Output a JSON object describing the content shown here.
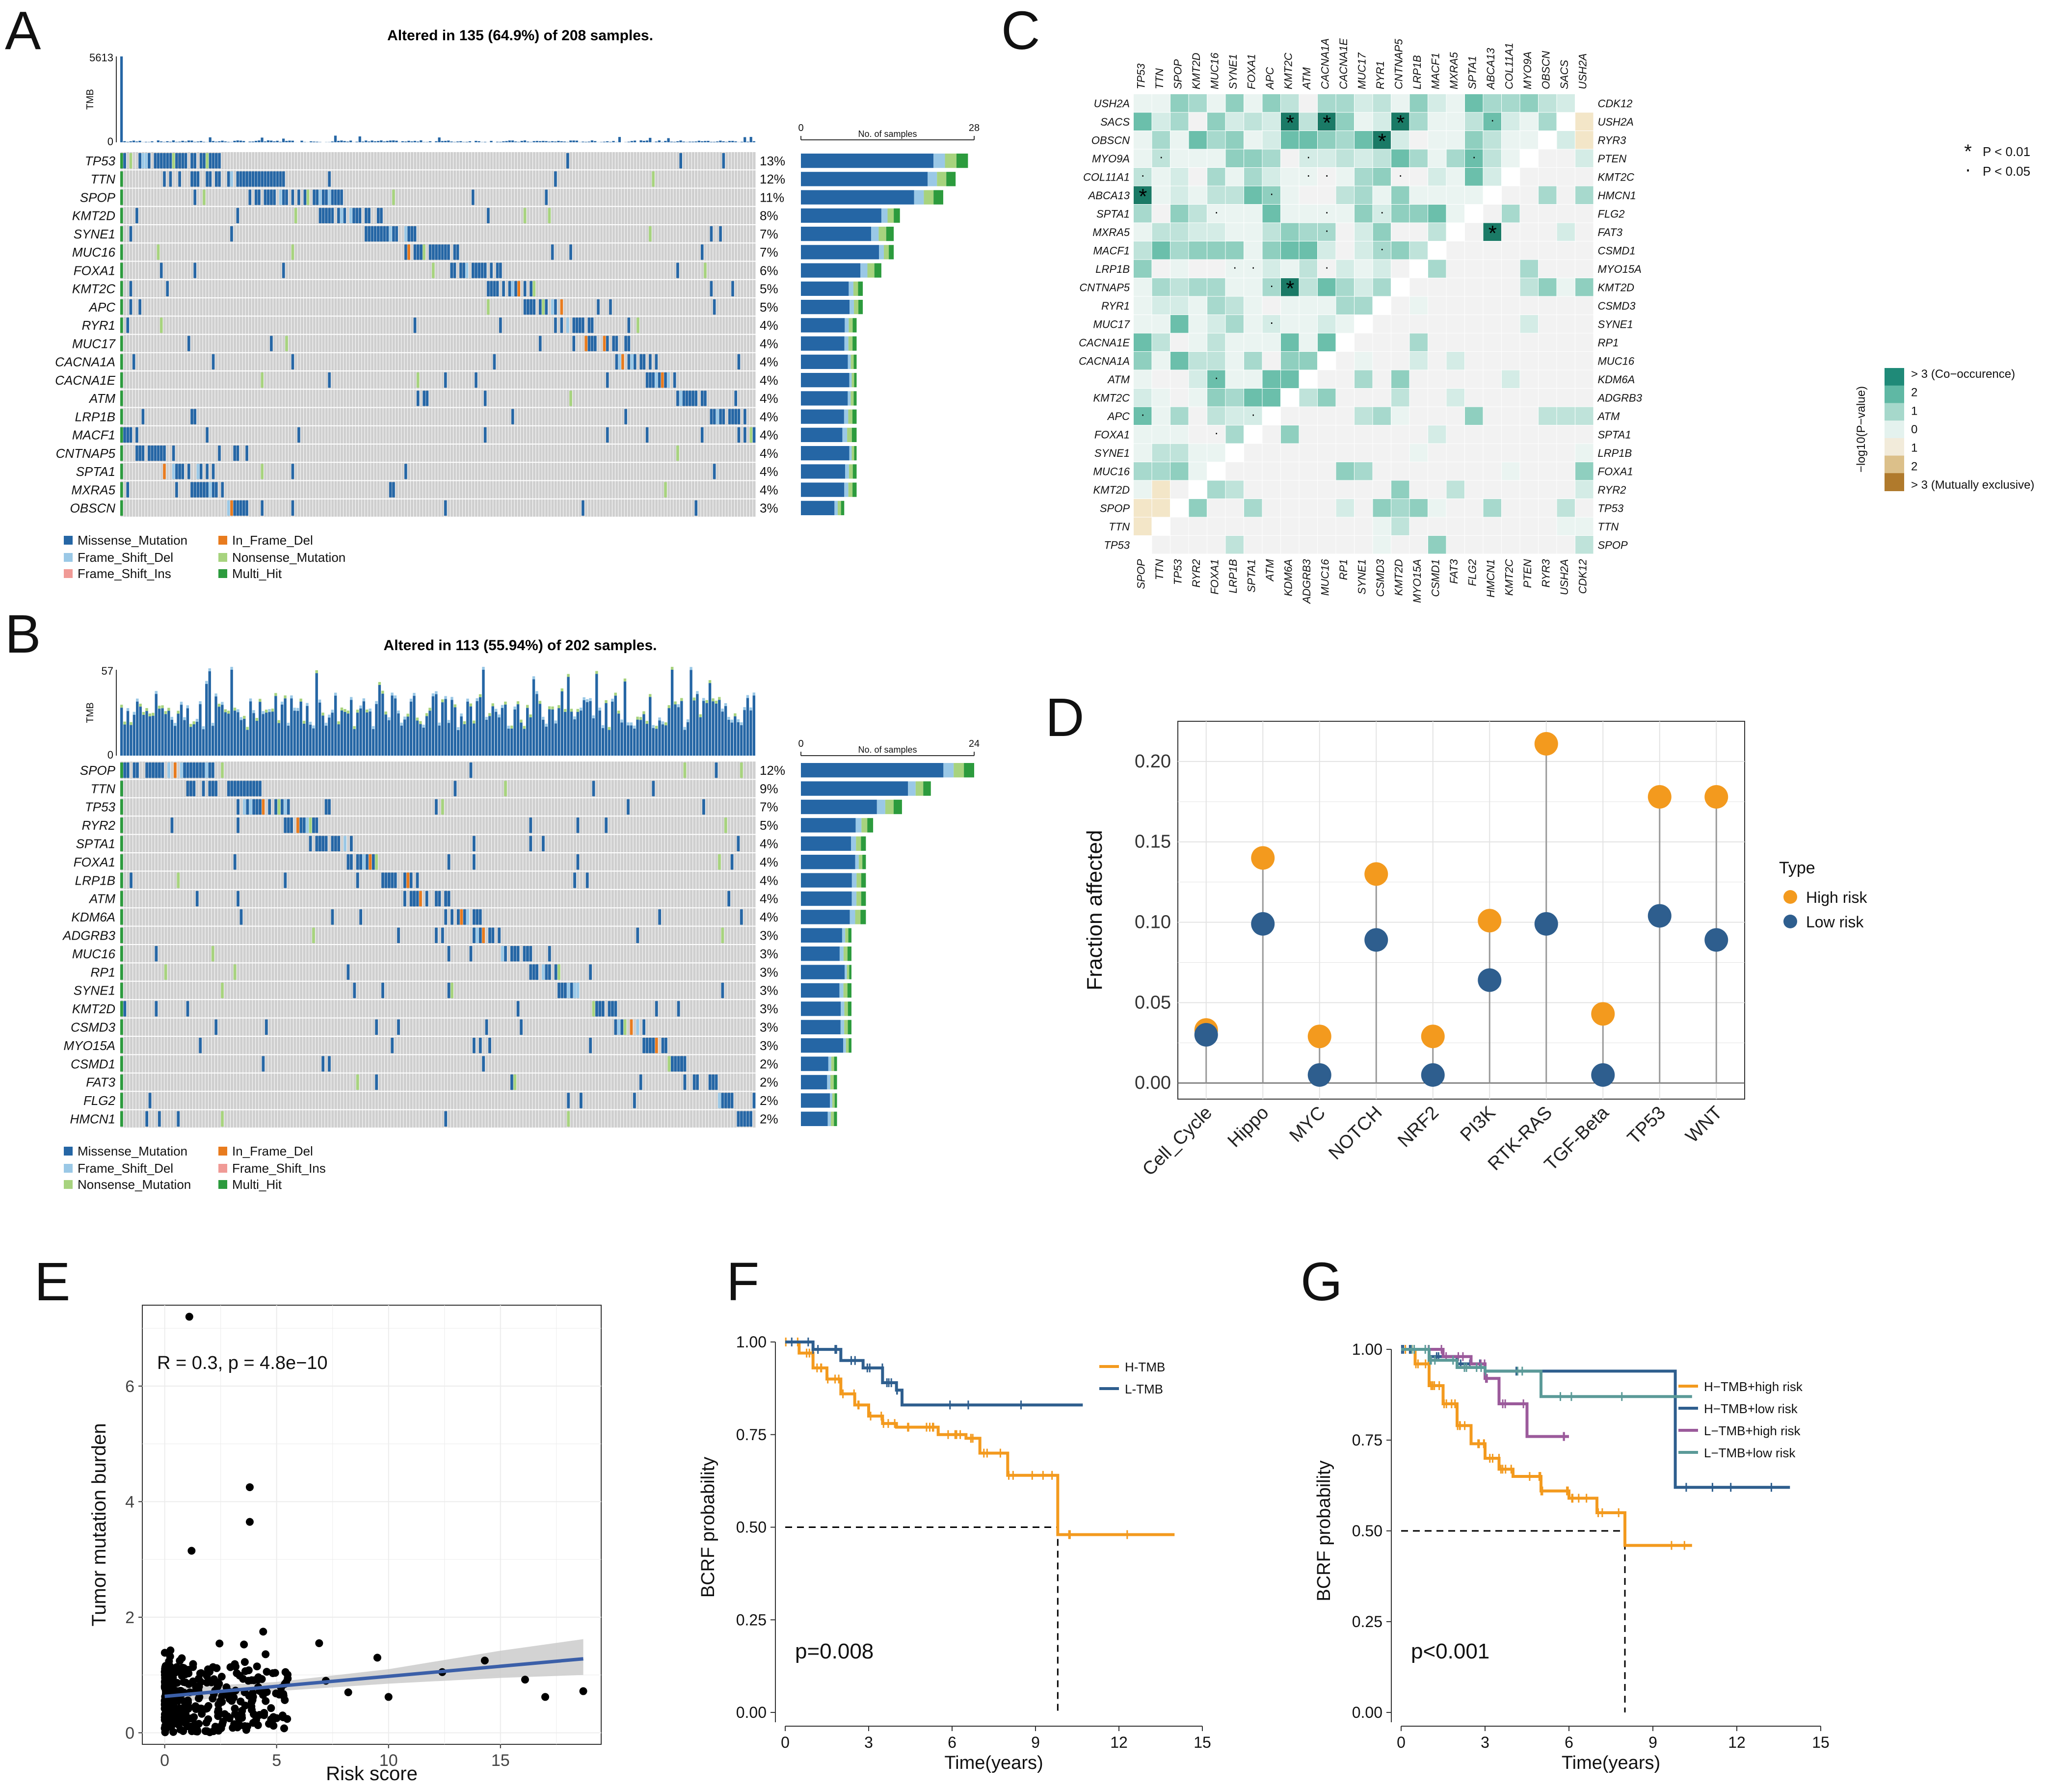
{
  "colors": {
    "missense": "#2566a5",
    "frame_shift_del": "#9ac8e6",
    "frame_shift_ins": "#f09a96",
    "in_frame_del": "#e87b1e",
    "nonsense": "#a7d37e",
    "multi_hit": "#2c9b3d",
    "high_risk": "#f39a1e",
    "low_risk": "#2e5e8e",
    "h_tmb": "#f39a1e",
    "l_tmb": "#2e5e8e",
    "htmb_high": "#f39a1e",
    "htmb_low": "#2e5e8e",
    "ltmb_high": "#9b5a9b",
    "ltmb_low": "#5b9a98",
    "grid_bg": "#cfcfcf",
    "co_occ": "#1f8a78",
    "mutex": "#b07a2c"
  },
  "panels": {
    "A": {
      "letter": "A",
      "title": "Altered in 135 (64.9%) of 208 samples."
    },
    "B": {
      "letter": "B",
      "title": "Altered in 113 (55.94%) of 202 samples."
    },
    "C": {
      "letter": "C"
    },
    "D": {
      "letter": "D"
    },
    "E": {
      "letter": "E"
    },
    "F": {
      "letter": "F"
    },
    "G": {
      "letter": "G"
    }
  },
  "chart_data": [
    {
      "id": "A",
      "type": "table",
      "title": "Altered in 135 (64.9%) of 208 samples.",
      "tmb_label": "TMB",
      "tmb_max": 5613,
      "tmb_min": 0,
      "bar_axis_label": "No. of samples",
      "bar_axis_max": 28,
      "n_samples": 208,
      "genes": [
        "TP53",
        "TTN",
        "SPOP",
        "KMT2D",
        "SYNE1",
        "MUC16",
        "FOXA1",
        "KMT2C",
        "APC",
        "RYR1",
        "MUC17",
        "CACNA1A",
        "CACNA1E",
        "ATM",
        "LRP1B",
        "MACF1",
        "CNTNAP5",
        "SPTA1",
        "MXRA5",
        "OBSCN"
      ],
      "percent": [
        "13%",
        "12%",
        "11%",
        "8%",
        "7%",
        "7%",
        "6%",
        "5%",
        "5%",
        "4%",
        "4%",
        "4%",
        "4%",
        "4%",
        "4%",
        "4%",
        "4%",
        "4%",
        "4%",
        "3%"
      ],
      "counts": [
        27,
        25,
        23,
        16,
        15,
        15,
        13,
        10,
        10,
        9,
        9,
        9,
        9,
        9,
        9,
        9,
        9,
        9,
        9,
        7
      ],
      "legend": [
        "Missense_Mutation",
        "Frame_Shift_Del",
        "Frame_Shift_Ins",
        "In_Frame_Del",
        "Nonsense_Mutation",
        "Multi_Hit"
      ]
    },
    {
      "id": "B",
      "type": "table",
      "title": "Altered in 113 (55.94%) of 202 samples.",
      "tmb_label": "TMB",
      "tmb_max": 57,
      "tmb_min": 0,
      "bar_axis_label": "No. of samples",
      "bar_axis_max": 24,
      "n_samples": 202,
      "genes": [
        "SPOP",
        "TTN",
        "TP53",
        "RYR2",
        "SPTA1",
        "FOXA1",
        "LRP1B",
        "ATM",
        "KDM6A",
        "ADGRB3",
        "MUC16",
        "RP1",
        "SYNE1",
        "KMT2D",
        "CSMD3",
        "MYO15A",
        "CSMD1",
        "FAT3",
        "FLG2",
        "HMCN1"
      ],
      "percent": [
        "12%",
        "9%",
        "7%",
        "5%",
        "4%",
        "4%",
        "4%",
        "4%",
        "4%",
        "3%",
        "3%",
        "3%",
        "3%",
        "3%",
        "3%",
        "3%",
        "2%",
        "2%",
        "2%",
        "2%"
      ],
      "counts": [
        24,
        18,
        14,
        10,
        9,
        9,
        9,
        9,
        9,
        7,
        7,
        7,
        7,
        7,
        7,
        7,
        5,
        5,
        5,
        5
      ],
      "legend": [
        "Missense_Mutation",
        "Frame_Shift_Del",
        "Nonsense_Mutation",
        "In_Frame_Del",
        "Frame_Shift_Ins",
        "Multi_Hit"
      ]
    },
    {
      "id": "C",
      "type": "heatmap",
      "top_genes": [
        "TP53",
        "TTN",
        "SPOP",
        "KMT2D",
        "MUC16",
        "SYNE1",
        "FOXA1",
        "APC",
        "KMT2C",
        "ATM",
        "CACNA1A",
        "CACNA1E",
        "MUC17",
        "RYR1",
        "CNTNAP5",
        "LRP1B",
        "MACF1",
        "MXRA5",
        "SPTA1",
        "ABCA13",
        "COL11A1",
        "MYO9A",
        "OBSCN",
        "SACS",
        "USH2A"
      ],
      "left_genes": [
        "USH2A",
        "SACS",
        "OBSCN",
        "MYO9A",
        "COL11A1",
        "ABCA13",
        "SPTA1",
        "MXRA5",
        "MACF1",
        "LRP1B",
        "CNTNAP5",
        "RYR1",
        "MUC17",
        "CACNA1E",
        "CACNA1A",
        "ATM",
        "KMT2C",
        "APC",
        "FOXA1",
        "SYNE1",
        "MUC16",
        "KMT2D",
        "SPOP",
        "TTN",
        "TP53"
      ],
      "bottom_genes": [
        "SPOP",
        "TTN",
        "TP53",
        "RYR2",
        "FOXA1",
        "LRP1B",
        "SPTA1",
        "ATM",
        "KDM6A",
        "ADGRB3",
        "MUC16",
        "RP1",
        "SYNE1",
        "CSMD3",
        "KMT2D",
        "MYO15A",
        "CSMD1",
        "FAT3",
        "FLG2",
        "HMCN1",
        "KMT2C",
        "PTEN",
        "RYR3",
        "USH2A",
        "CDK12"
      ],
      "right_genes": [
        "CDK12",
        "USH2A",
        "RYR3",
        "PTEN",
        "KMT2C",
        "HMCN1",
        "FLG2",
        "FAT3",
        "CSMD1",
        "MYO15A",
        "KMT2D",
        "CSMD3",
        "SYNE1",
        "RP1",
        "MUC16",
        "KDM6A",
        "ADGRB3",
        "ATM",
        "SPTA1",
        "LRP1B",
        "FOXA1",
        "RYR2",
        "TP53",
        "TTN",
        "SPOP"
      ],
      "sig_legend": [
        {
          "symbol": "*",
          "label": "P < 0.01"
        },
        {
          "symbol": "·",
          "label": "P < 0.05"
        }
      ],
      "colorbar_title": "−log10(P−value)",
      "colorbar_ticks": [
        "> 3 (Co−occurence)",
        "2",
        "1",
        "0",
        "1",
        "2",
        "> 3 (Mutually exclusive)"
      ]
    },
    {
      "id": "D",
      "type": "scatter",
      "categories": [
        "Cell_Cycle",
        "Hippo",
        "MYC",
        "NOTCH",
        "NRF2",
        "PI3K",
        "RTK-RAS",
        "TGF-Beta",
        "TP53",
        "WNT"
      ],
      "series": [
        {
          "name": "High risk",
          "values": [
            0.033,
            0.14,
            0.029,
            0.13,
            0.029,
            0.101,
            0.211,
            0.043,
            0.178,
            0.178
          ]
        },
        {
          "name": "Low risk",
          "values": [
            0.03,
            0.099,
            0.005,
            0.089,
            0.005,
            0.064,
            0.099,
            0.005,
            0.104,
            0.089
          ]
        }
      ],
      "ylabel": "Fraction affected",
      "xlabel": "",
      "ylim": [
        -0.01,
        0.225
      ],
      "yticks": [
        "0.00",
        "0.05",
        "0.10",
        "0.15",
        "0.20"
      ],
      "legend_title": "Type"
    },
    {
      "id": "E",
      "type": "scatter",
      "xlabel": "Risk score",
      "ylabel": "Tumor mutation burden",
      "xlim": [
        -1,
        19.5
      ],
      "ylim": [
        -0.2,
        7.4
      ],
      "xticks": [
        "0",
        "5",
        "10",
        "15"
      ],
      "yticks": [
        "0",
        "2",
        "4",
        "6"
      ],
      "annotation": "R = 0.3, p = 4.8e−10",
      "fit": {
        "x": [
          0,
          18.7
        ],
        "y": [
          0.63,
          1.28
        ]
      },
      "outliers": [
        [
          1.1,
          7.2
        ],
        [
          3.8,
          4.25
        ],
        [
          3.8,
          3.65
        ],
        [
          1.2,
          3.15
        ],
        [
          4.4,
          1.75
        ],
        [
          6.9,
          1.55
        ],
        [
          9.5,
          1.3
        ],
        [
          12.4,
          1.05
        ],
        [
          14.3,
          1.25
        ],
        [
          16.1,
          0.92
        ],
        [
          17.0,
          0.62
        ],
        [
          18.7,
          0.72
        ],
        [
          10.0,
          0.62
        ],
        [
          5.2,
          0.78
        ],
        [
          7.2,
          0.9
        ],
        [
          8.2,
          0.7
        ]
      ]
    },
    {
      "id": "F",
      "type": "line",
      "xlabel": "Time(years)",
      "ylabel": "BCRF probability",
      "xlim": [
        0,
        15
      ],
      "ylim": [
        0,
        1
      ],
      "xticks": [
        "0",
        "3",
        "6",
        "9",
        "12",
        "15"
      ],
      "yticks": [
        "0.00",
        "0.25",
        "0.50",
        "0.75",
        "1.00"
      ],
      "pvalue": "p=0.008",
      "median_x": 9.8,
      "series": [
        {
          "name": "H-TMB",
          "x": [
            0,
            0.5,
            1.0,
            1.5,
            2.0,
            2.5,
            3.0,
            3.5,
            4.0,
            5.0,
            5.5,
            6.5,
            7.0,
            8.0,
            8.5,
            9.8,
            14.0
          ],
          "y": [
            1.0,
            0.97,
            0.93,
            0.9,
            0.86,
            0.83,
            0.8,
            0.78,
            0.77,
            0.77,
            0.75,
            0.74,
            0.7,
            0.64,
            0.64,
            0.48,
            0.48
          ]
        },
        {
          "name": "L-TMB",
          "x": [
            0,
            1.0,
            2.0,
            2.8,
            3.5,
            4.0,
            4.2,
            10.7
          ],
          "y": [
            1.0,
            0.98,
            0.95,
            0.93,
            0.89,
            0.87,
            0.83,
            0.83
          ]
        }
      ]
    },
    {
      "id": "G",
      "type": "line",
      "xlabel": "Time(years)",
      "ylabel": "BCRF probability",
      "xlim": [
        0,
        15
      ],
      "ylim": [
        0,
        1
      ],
      "xticks": [
        "0",
        "3",
        "6",
        "9",
        "12",
        "15"
      ],
      "yticks": [
        "0.00",
        "0.25",
        "0.50",
        "0.75",
        "1.00"
      ],
      "pvalue": "p<0.001",
      "median_x": 8.0,
      "series": [
        {
          "name": "H−TMB+high risk",
          "x": [
            0,
            0.5,
            1.0,
            1.5,
            2.0,
            2.5,
            3.0,
            3.5,
            4.0,
            5.0,
            6.0,
            7.0,
            8.0,
            10.4
          ],
          "y": [
            1.0,
            0.96,
            0.9,
            0.85,
            0.79,
            0.74,
            0.7,
            0.67,
            0.65,
            0.61,
            0.59,
            0.55,
            0.46,
            0.46
          ]
        },
        {
          "name": "H−TMB+low risk",
          "x": [
            0,
            1.0,
            2.0,
            3.0,
            9.8,
            13.9
          ],
          "y": [
            1.0,
            0.98,
            0.96,
            0.94,
            0.62,
            0.62
          ]
        },
        {
          "name": "L−TMB+high risk",
          "x": [
            0,
            1.5,
            2.5,
            3.0,
            3.5,
            4.5,
            6.0
          ],
          "y": [
            1.0,
            0.98,
            0.96,
            0.92,
            0.85,
            0.76,
            0.76
          ]
        },
        {
          "name": "L−TMB+low risk",
          "x": [
            0,
            1.0,
            2.0,
            3.0,
            5.0,
            10.4
          ],
          "y": [
            1.0,
            0.97,
            0.95,
            0.94,
            0.87,
            0.87
          ]
        }
      ]
    }
  ]
}
